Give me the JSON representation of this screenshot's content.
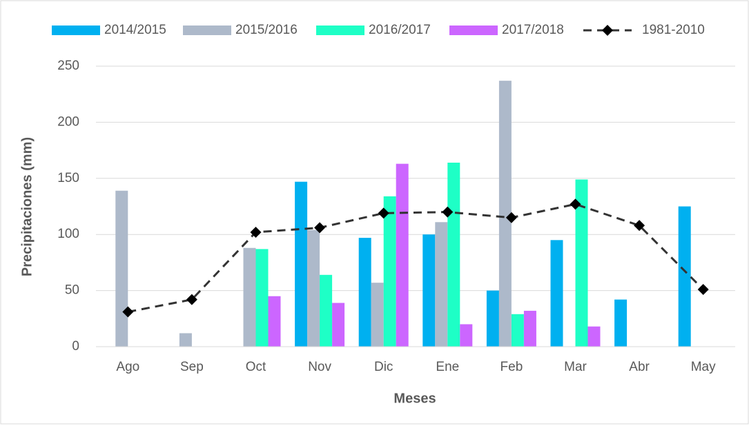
{
  "chart_data": {
    "type": "bar",
    "categories": [
      "Ago",
      "Sep",
      "Oct",
      "Nov",
      "Dic",
      "Ene",
      "Feb",
      "Mar",
      "Abr",
      "May"
    ],
    "series": [
      {
        "name": "2014/2015",
        "color": "#00b0f0",
        "values": [
          null,
          null,
          null,
          147,
          97,
          100,
          50,
          95,
          42,
          125
        ]
      },
      {
        "name": "2015/2016",
        "color": "#adb9ca",
        "values": [
          139,
          12,
          88,
          104,
          57,
          111,
          237,
          null,
          null,
          null
        ]
      },
      {
        "name": "2016/2017",
        "color": "#1effc6",
        "values": [
          null,
          null,
          87,
          64,
          134,
          164,
          29,
          149,
          null,
          null
        ]
      },
      {
        "name": "2017/2018",
        "color": "#cc66ff",
        "values": [
          null,
          null,
          45,
          39,
          163,
          20,
          32,
          18,
          null,
          null
        ]
      },
      {
        "name": "1981-2010",
        "type": "line",
        "color": "#333333",
        "values": [
          31,
          42,
          102,
          106,
          119,
          120,
          115,
          127,
          108,
          51
        ]
      }
    ],
    "ylabel": "Precipitaciones (mm)",
    "xlabel": "Meses",
    "ylim": [
      0,
      250
    ],
    "yticks": [
      0,
      50,
      100,
      150,
      200,
      250
    ],
    "grid": true,
    "legend": "top"
  }
}
